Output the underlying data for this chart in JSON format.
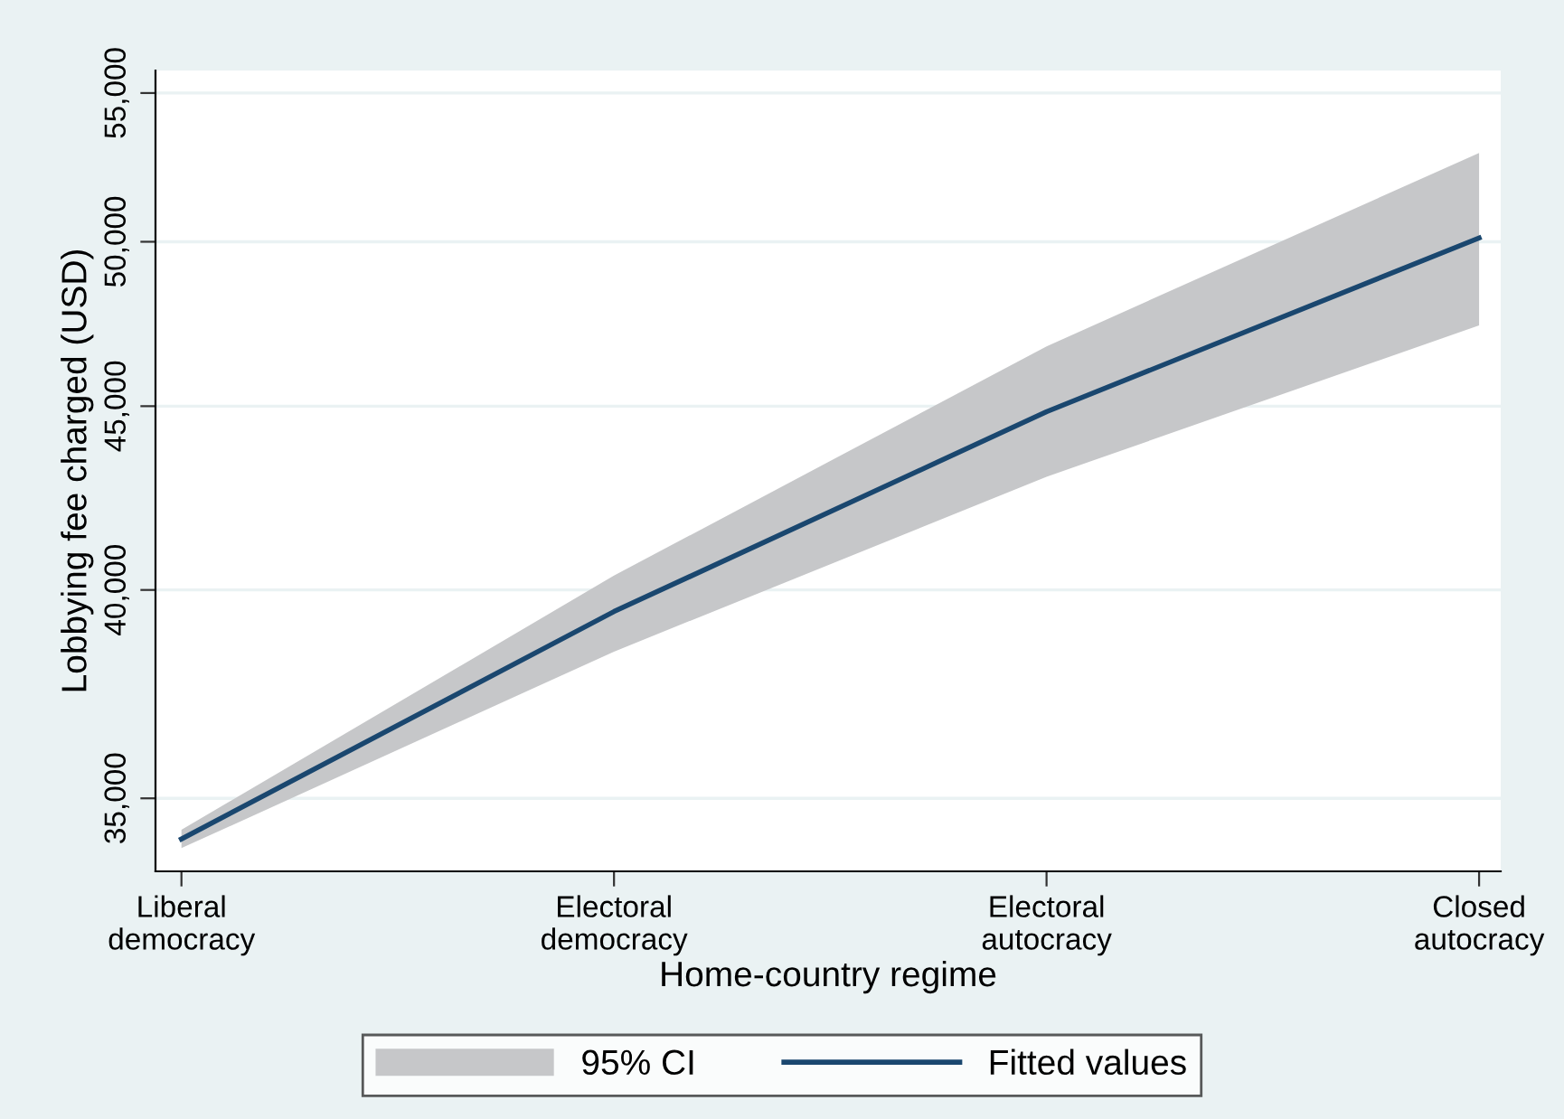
{
  "chart_data": {
    "type": "line",
    "xlabel": "Home-country regime",
    "ylabel": "Lobbying fee charged (USD)",
    "categories": [
      "Liberal\ndemocracy",
      "Electoral\ndemocracy",
      "Electoral\nautocracy",
      "Closed\nautocracy"
    ],
    "series": [
      {
        "name": "95% CI",
        "type": "area",
        "color": "#c6c7c9",
        "values": [
          null,
          null,
          null,
          null
        ]
      },
      {
        "name": "Fitted values",
        "color": "#1a476f",
        "values": [
          34100,
          39450,
          44840,
          50120
        ],
        "lower": [
          33900,
          38450,
          43010,
          47390
        ],
        "upper": [
          34300,
          40370,
          46760,
          52930
        ]
      }
    ],
    "ylim": [
      33400,
      55800
    ],
    "yticks": [
      {
        "value": 35000,
        "label": "35,000"
      },
      {
        "value": 40000,
        "label": "40,000"
      },
      {
        "value": 45000,
        "label": "45,000"
      },
      {
        "value": 50000,
        "label": "50,000"
      },
      {
        "value": 55000,
        "label": "55,000"
      }
    ],
    "log": "y",
    "grid": "y",
    "legend": "bottom",
    "marker": "none",
    "line_style": "solid"
  }
}
